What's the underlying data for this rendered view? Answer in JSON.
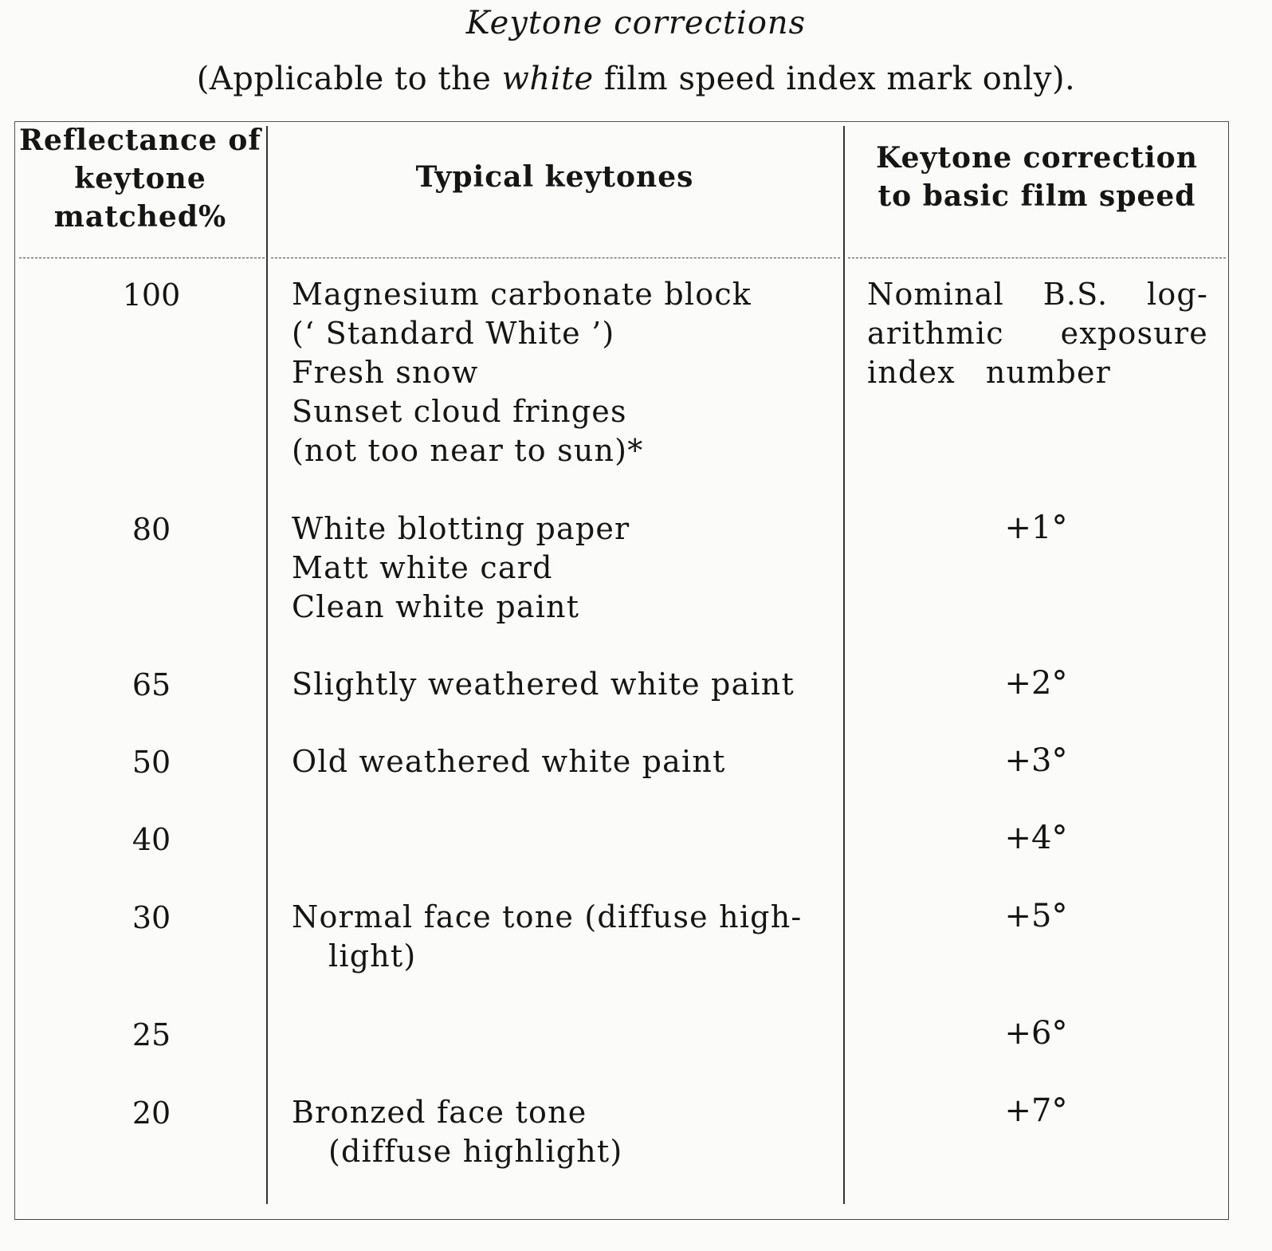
{
  "title": "Keytone corrections",
  "subtitle": {
    "before": "(Applicable to the ",
    "emph": "white",
    "after": " film speed index mark only)."
  },
  "headers": {
    "reflectance": [
      "Reflectance of",
      "keytone",
      "matched%"
    ],
    "typical": "Typical keytones",
    "correction": [
      "Keytone correction",
      "to basic film speed"
    ]
  },
  "rows": [
    {
      "reflectance": "100",
      "keytones": [
        "Magnesium carbonate block",
        "(‘ Standard White ’)",
        "Fresh snow",
        "Sunset cloud fringes",
        "(not too near to sun)*"
      ],
      "correction_lines": [
        [
          "Nominal",
          "B.S.",
          "log-"
        ],
        [
          "arithmic",
          "exposure"
        ],
        [
          "index",
          "number"
        ]
      ]
    },
    {
      "reflectance": "80",
      "keytones": [
        "White blotting paper",
        "Matt white card",
        "Clean white paint"
      ],
      "correction": "+1°"
    },
    {
      "reflectance": "65",
      "keytones": [
        "Slightly weathered white paint"
      ],
      "correction": "+2°"
    },
    {
      "reflectance": "50",
      "keytones": [
        "Old weathered white paint"
      ],
      "correction": "+3°"
    },
    {
      "reflectance": "40",
      "keytones": [],
      "correction": "+4°"
    },
    {
      "reflectance": "30",
      "keytones": [
        "Normal face tone (diffuse high-",
        "light)"
      ],
      "correction": "+5°"
    },
    {
      "reflectance": "25",
      "keytones": [],
      "correction": "+6°"
    },
    {
      "reflectance": "20",
      "keytones": [
        "Bronzed face tone",
        "(diffuse highlight)"
      ],
      "correction": "+7°"
    }
  ]
}
